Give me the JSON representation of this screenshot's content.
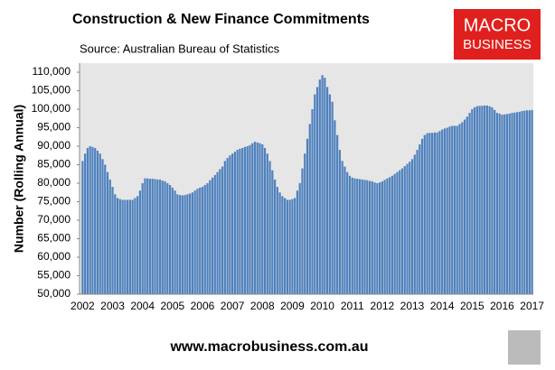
{
  "chart_data": {
    "type": "bar",
    "title": "Construction & New Finance Commitments",
    "subtitle": "Source: Australian  Bureau of Statistics",
    "y_label": "Number (Rolling Annual)",
    "footer": "www.macrobusiness.com.au",
    "logo": [
      "MACRO",
      "BUSINESS"
    ],
    "color": "#4f81bd",
    "ylim": [
      50000,
      110000
    ],
    "yticks": [
      {
        "value": 50000,
        "label": "50,000"
      },
      {
        "value": 55000,
        "label": "55,000"
      },
      {
        "value": 60000,
        "label": "60,000"
      },
      {
        "value": 65000,
        "label": "65,000"
      },
      {
        "value": 70000,
        "label": "70,000"
      },
      {
        "value": 75000,
        "label": "75,000"
      },
      {
        "value": 80000,
        "label": "80,000"
      },
      {
        "value": 85000,
        "label": "85,000"
      },
      {
        "value": 90000,
        "label": "90,000"
      },
      {
        "value": 95000,
        "label": "95,000"
      },
      {
        "value": 100000,
        "label": "100,000"
      },
      {
        "value": 105000,
        "label": "105,000"
      },
      {
        "value": 110000,
        "label": "110,000"
      }
    ],
    "categories": [
      "2002",
      null,
      null,
      null,
      null,
      null,
      null,
      null,
      null,
      null,
      null,
      null,
      "2003",
      null,
      null,
      null,
      null,
      null,
      null,
      null,
      null,
      null,
      null,
      null,
      "2004",
      null,
      null,
      null,
      null,
      null,
      null,
      null,
      null,
      null,
      null,
      null,
      "2005",
      null,
      null,
      null,
      null,
      null,
      null,
      null,
      null,
      null,
      null,
      null,
      "2006",
      null,
      null,
      null,
      null,
      null,
      null,
      null,
      null,
      null,
      null,
      null,
      "2007",
      null,
      null,
      null,
      null,
      null,
      null,
      null,
      null,
      null,
      null,
      null,
      "2008",
      null,
      null,
      null,
      null,
      null,
      null,
      null,
      null,
      null,
      null,
      null,
      "2009",
      null,
      null,
      null,
      null,
      null,
      null,
      null,
      null,
      null,
      null,
      null,
      "2010",
      null,
      null,
      null,
      null,
      null,
      null,
      null,
      null,
      null,
      null,
      null,
      "2011",
      null,
      null,
      null,
      null,
      null,
      null,
      null,
      null,
      null,
      null,
      null,
      "2012",
      null,
      null,
      null,
      null,
      null,
      null,
      null,
      null,
      null,
      null,
      null,
      "2013",
      null,
      null,
      null,
      null,
      null,
      null,
      null,
      null,
      null,
      null,
      null,
      "2014",
      null,
      null,
      null,
      null,
      null,
      null,
      null,
      null,
      null,
      null,
      null,
      "2015",
      null,
      null,
      null,
      null,
      null,
      null,
      null,
      null,
      null,
      null,
      null,
      "2016",
      null,
      null,
      null,
      null,
      null,
      null,
      null,
      null,
      null,
      null,
      null,
      "2017"
    ],
    "values": [
      86000,
      88000,
      89500,
      90000,
      89800,
      89500,
      88800,
      88000,
      86500,
      85000,
      83000,
      81000,
      79000,
      77000,
      76000,
      75700,
      75500,
      75500,
      75500,
      75500,
      75500,
      76000,
      76500,
      78000,
      80000,
      81300,
      81300,
      81200,
      81200,
      81100,
      81000,
      81000,
      80700,
      80500,
      80000,
      79500,
      78800,
      78000,
      77000,
      76800,
      76700,
      76800,
      77000,
      77200,
      77500,
      78000,
      78500,
      78800,
      79000,
      79500,
      80000,
      80800,
      81500,
      82200,
      83000,
      83800,
      84500,
      86000,
      86800,
      87500,
      88000,
      88500,
      89000,
      89300,
      89500,
      89800,
      90000,
      90300,
      90800,
      91200,
      91000,
      90800,
      90500,
      89500,
      88000,
      86000,
      83500,
      81000,
      79000,
      77500,
      76500,
      76000,
      75500,
      75500,
      75700,
      76000,
      78000,
      80000,
      84000,
      88000,
      92000,
      96000,
      100000,
      104000,
      106000,
      108000,
      109200,
      108500,
      106000,
      104000,
      102000,
      97000,
      93000,
      89000,
      86000,
      84500,
      83000,
      82000,
      81500,
      81300,
      81200,
      81100,
      81000,
      80900,
      80800,
      80600,
      80500,
      80200,
      80000,
      80200,
      80500,
      80900,
      81300,
      81600,
      82000,
      82500,
      83000,
      83500,
      84000,
      84600,
      85200,
      85800,
      86500,
      87700,
      89000,
      90500,
      92000,
      93000,
      93500,
      93600,
      93600,
      93700,
      93700,
      94100,
      94500,
      94800,
      95000,
      95300,
      95500,
      95500,
      95500,
      96000,
      96500,
      97200,
      98000,
      99000,
      100000,
      100500,
      100800,
      100900,
      100900,
      101000,
      101000,
      100800,
      100500,
      99800,
      99000,
      98800,
      98500,
      98600,
      98700,
      98800,
      99000,
      99100,
      99200,
      99300,
      99500,
      99600,
      99700,
      99700,
      99800
    ]
  }
}
